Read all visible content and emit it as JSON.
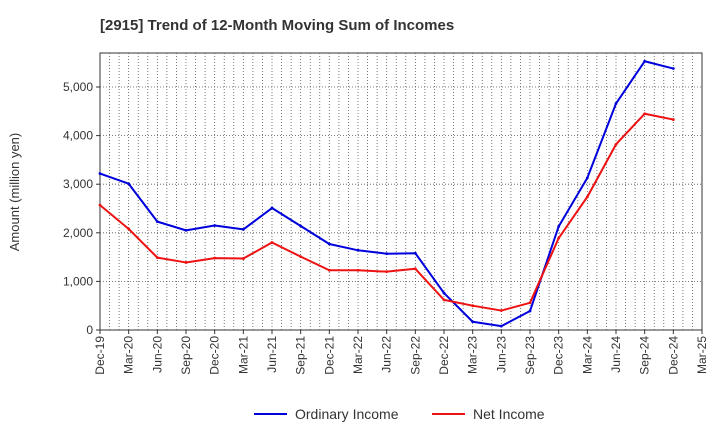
{
  "chart_data": {
    "type": "line",
    "title": "[2915]  Trend of 12-Month Moving Sum of Incomes",
    "xlabel": "",
    "ylabel": "Amount (million yen)",
    "ylim": [
      0,
      5700
    ],
    "yticks": [
      0,
      1000,
      2000,
      3000,
      4000,
      5000
    ],
    "ytick_labels": [
      "0",
      "1,000",
      "2,000",
      "3,000",
      "4,000",
      "5,000"
    ],
    "categories": [
      "Dec-19",
      "Mar-20",
      "Jun-20",
      "Sep-20",
      "Dec-20",
      "Mar-21",
      "Jun-21",
      "Sep-21",
      "Dec-21",
      "Mar-22",
      "Jun-22",
      "Sep-22",
      "Dec-22",
      "Mar-23",
      "Jun-23",
      "Sep-23",
      "Dec-23",
      "Mar-24",
      "Jun-24",
      "Sep-24",
      "Dec-24",
      "Mar-25"
    ],
    "grid": true,
    "legend_position": "bottom",
    "series": [
      {
        "name": "Ordinary Income",
        "color": "#0000dd",
        "values": [
          3220,
          3010,
          2230,
          2050,
          2150,
          2070,
          2510,
          2140,
          1770,
          1640,
          1570,
          1580,
          760,
          170,
          80,
          390,
          2130,
          3130,
          4660,
          5530,
          5380,
          null
        ]
      },
      {
        "name": "Net Income",
        "color": "#ee1111",
        "values": [
          2570,
          2080,
          1490,
          1390,
          1480,
          1470,
          1800,
          1510,
          1230,
          1230,
          1200,
          1260,
          620,
          500,
          400,
          560,
          1890,
          2740,
          3820,
          4450,
          4330,
          null
        ]
      }
    ]
  }
}
